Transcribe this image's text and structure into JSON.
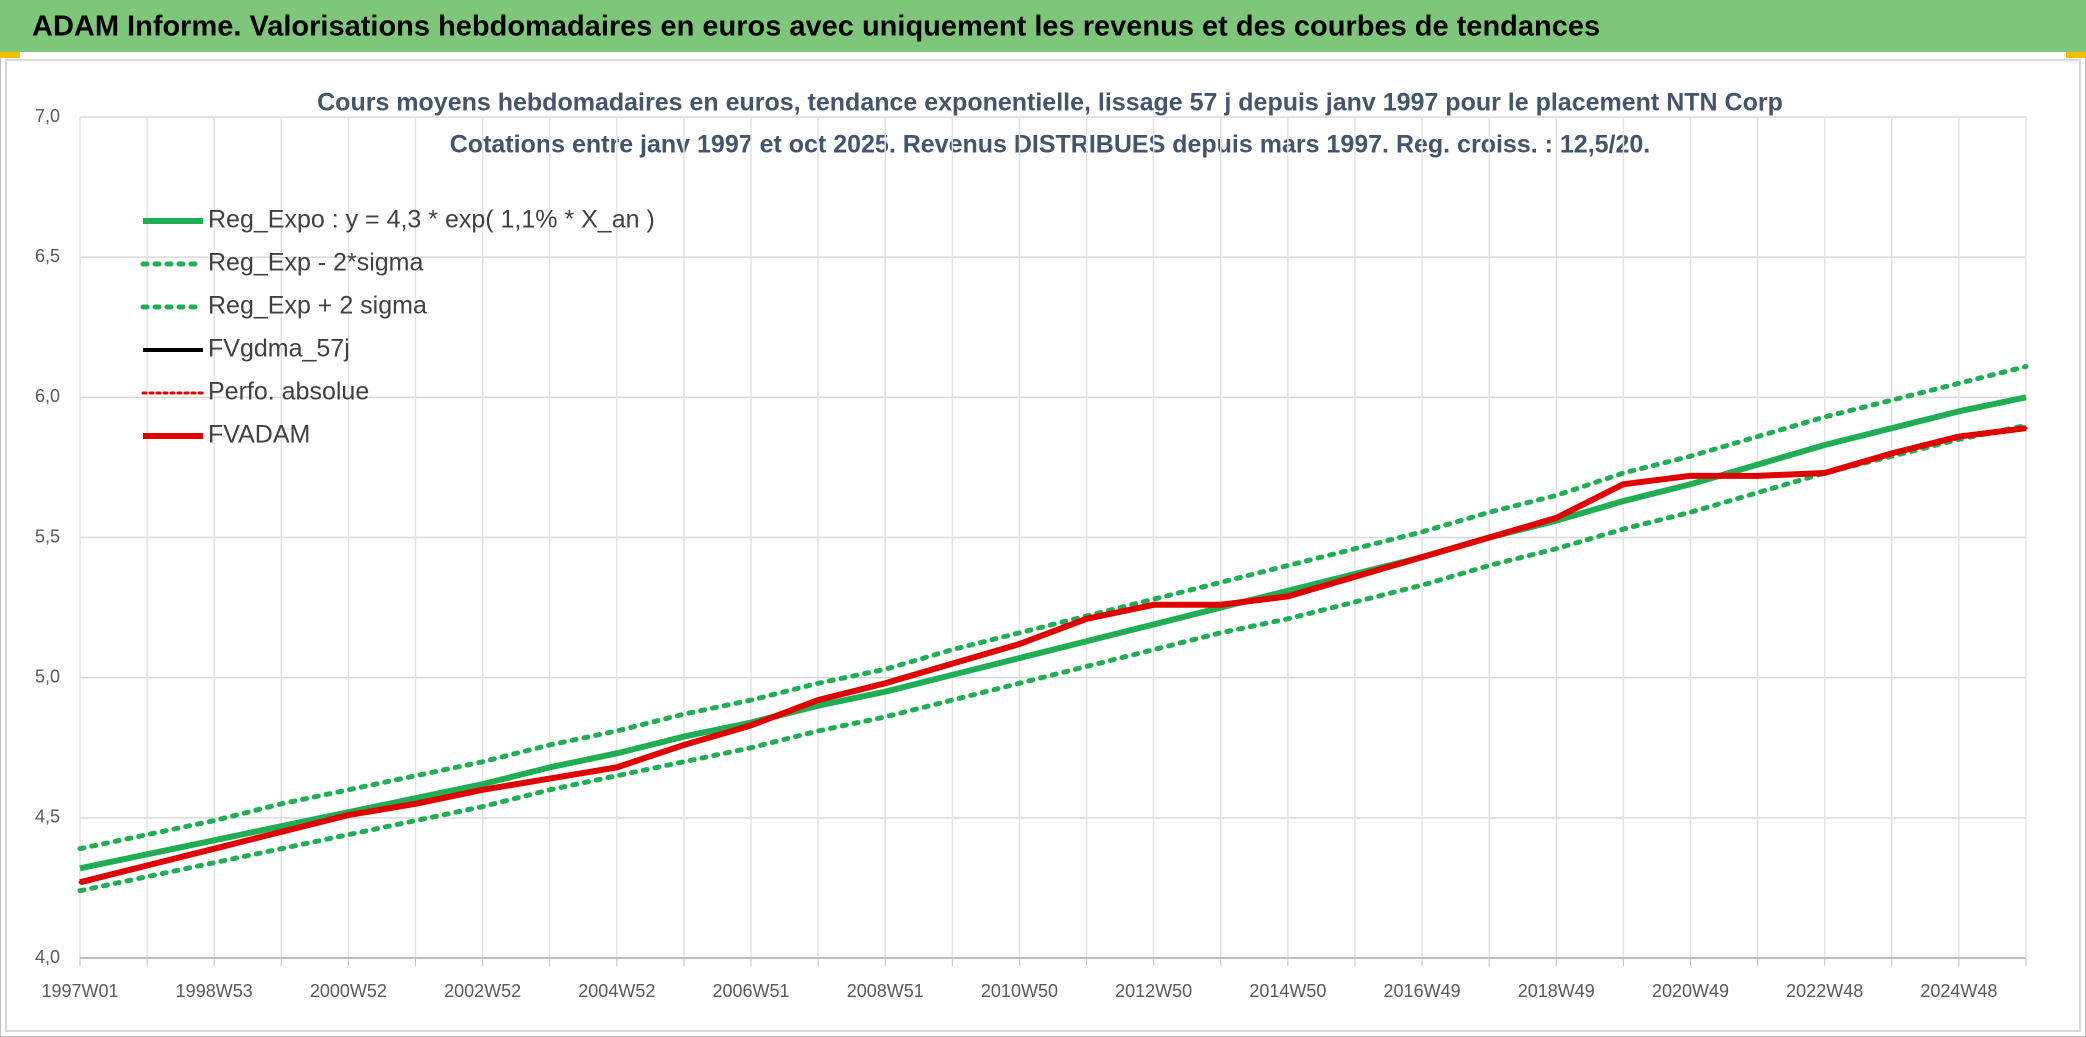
{
  "header": {
    "title": "ADAM Informe. Valorisations hebdomadaires en euros avec uniquement les revenus et des courbes de tendances"
  },
  "chart_data": {
    "type": "line",
    "title": "Cours moyens hebdomadaires en euros, tendance exponentielle, lissage 57 j depuis janv 1997 pour le placement NTN Corp",
    "subtitle": "Cotations entre janv 1997 et oct 2025. Revenus DISTRIBUES depuis mars 1997. Reg. croiss. : 12,5/20.",
    "categories": [
      "1997W01",
      null,
      "1998W53",
      null,
      "2000W52",
      null,
      "2002W52",
      null,
      "2004W52",
      null,
      "2006W51",
      null,
      "2008W51",
      null,
      "2010W50",
      null,
      "2012W50",
      null,
      "2014W50",
      null,
      "2016W49",
      null,
      "2018W49",
      null,
      "2020W49",
      null,
      "2022W48",
      null,
      "2024W48",
      null
    ],
    "ylim": [
      4,
      7
    ],
    "yticks": [
      {
        "value": 4,
        "label": "4,0"
      },
      {
        "value": 4.5,
        "label": "4,5"
      },
      {
        "value": 5,
        "label": "5,0"
      },
      {
        "value": 5.5,
        "label": "5,5"
      },
      {
        "value": 6,
        "label": "6,0"
      },
      {
        "value": 6.5,
        "label": "6,5"
      },
      {
        "value": 7,
        "label": "7,0"
      }
    ],
    "grid": true,
    "legend": "top-left",
    "series": [
      {
        "name": "Reg_Expo : y = 4,3 * exp( 1,1% *  X_an )",
        "color": "#1fae54",
        "style": "solid",
        "width": 6,
        "values": [
          4.32,
          4.37,
          4.42,
          4.47,
          4.52,
          4.57,
          4.62,
          4.68,
          4.73,
          4.79,
          4.84,
          4.9,
          4.95,
          5.01,
          5.07,
          5.13,
          5.19,
          5.25,
          5.31,
          5.37,
          5.43,
          5.5,
          5.56,
          5.63,
          5.69,
          5.76,
          5.83,
          5.89,
          5.95,
          6.0
        ]
      },
      {
        "name": "Reg_Exp - 2*sigma",
        "color": "#1fae54",
        "style": "dotted",
        "width": 5,
        "values": [
          4.24,
          4.29,
          4.34,
          4.39,
          4.44,
          4.49,
          4.54,
          4.6,
          4.65,
          4.7,
          4.75,
          4.81,
          4.86,
          4.92,
          4.98,
          5.04,
          5.1,
          5.16,
          5.21,
          5.27,
          5.33,
          5.4,
          5.46,
          5.53,
          5.59,
          5.66,
          5.73,
          5.79,
          5.85,
          5.9
        ]
      },
      {
        "name": "Reg_Exp + 2 sigma",
        "color": "#1fae54",
        "style": "dotted",
        "width": 5,
        "values": [
          4.39,
          4.44,
          4.49,
          4.55,
          4.6,
          4.65,
          4.7,
          4.76,
          4.81,
          4.87,
          4.92,
          4.98,
          5.03,
          5.1,
          5.16,
          5.22,
          5.28,
          5.34,
          5.4,
          5.46,
          5.52,
          5.59,
          5.65,
          5.73,
          5.79,
          5.86,
          5.93,
          5.99,
          6.05,
          6.11
        ]
      },
      {
        "name": "FVgdma_57j",
        "color": "#000000",
        "style": "solid",
        "width": 4,
        "values": [
          4.27,
          4.33,
          4.39,
          4.45,
          4.51,
          4.55,
          4.6,
          4.64,
          4.68,
          4.76,
          4.83,
          4.92,
          4.98,
          5.05,
          5.12,
          5.21,
          5.26,
          5.26,
          5.29,
          5.36,
          5.43,
          5.5,
          5.57,
          5.69,
          5.72,
          5.72,
          5.73,
          5.8,
          5.86,
          5.89
        ]
      },
      {
        "name": "Perfo. absolue",
        "color": "#e00000",
        "style": "dotted",
        "width": 3,
        "values": [
          4.27,
          4.33,
          4.39,
          4.45,
          4.51,
          4.55,
          4.6,
          4.64,
          4.68,
          4.76,
          4.83,
          4.92,
          4.98,
          5.05,
          5.12,
          5.21,
          5.26,
          5.26,
          5.29,
          5.36,
          5.43,
          5.5,
          5.57,
          5.69,
          5.72,
          5.72,
          5.73,
          5.8,
          5.86,
          5.89
        ]
      },
      {
        "name": "FVADAM",
        "color": "#e00000",
        "style": "solid",
        "width": 6,
        "values": [
          4.27,
          4.33,
          4.39,
          4.45,
          4.51,
          4.55,
          4.6,
          4.64,
          4.68,
          4.76,
          4.83,
          4.92,
          4.98,
          5.05,
          5.12,
          5.21,
          5.26,
          5.26,
          5.29,
          5.36,
          5.43,
          5.5,
          5.57,
          5.69,
          5.72,
          5.72,
          5.73,
          5.8,
          5.86,
          5.89
        ]
      }
    ]
  }
}
